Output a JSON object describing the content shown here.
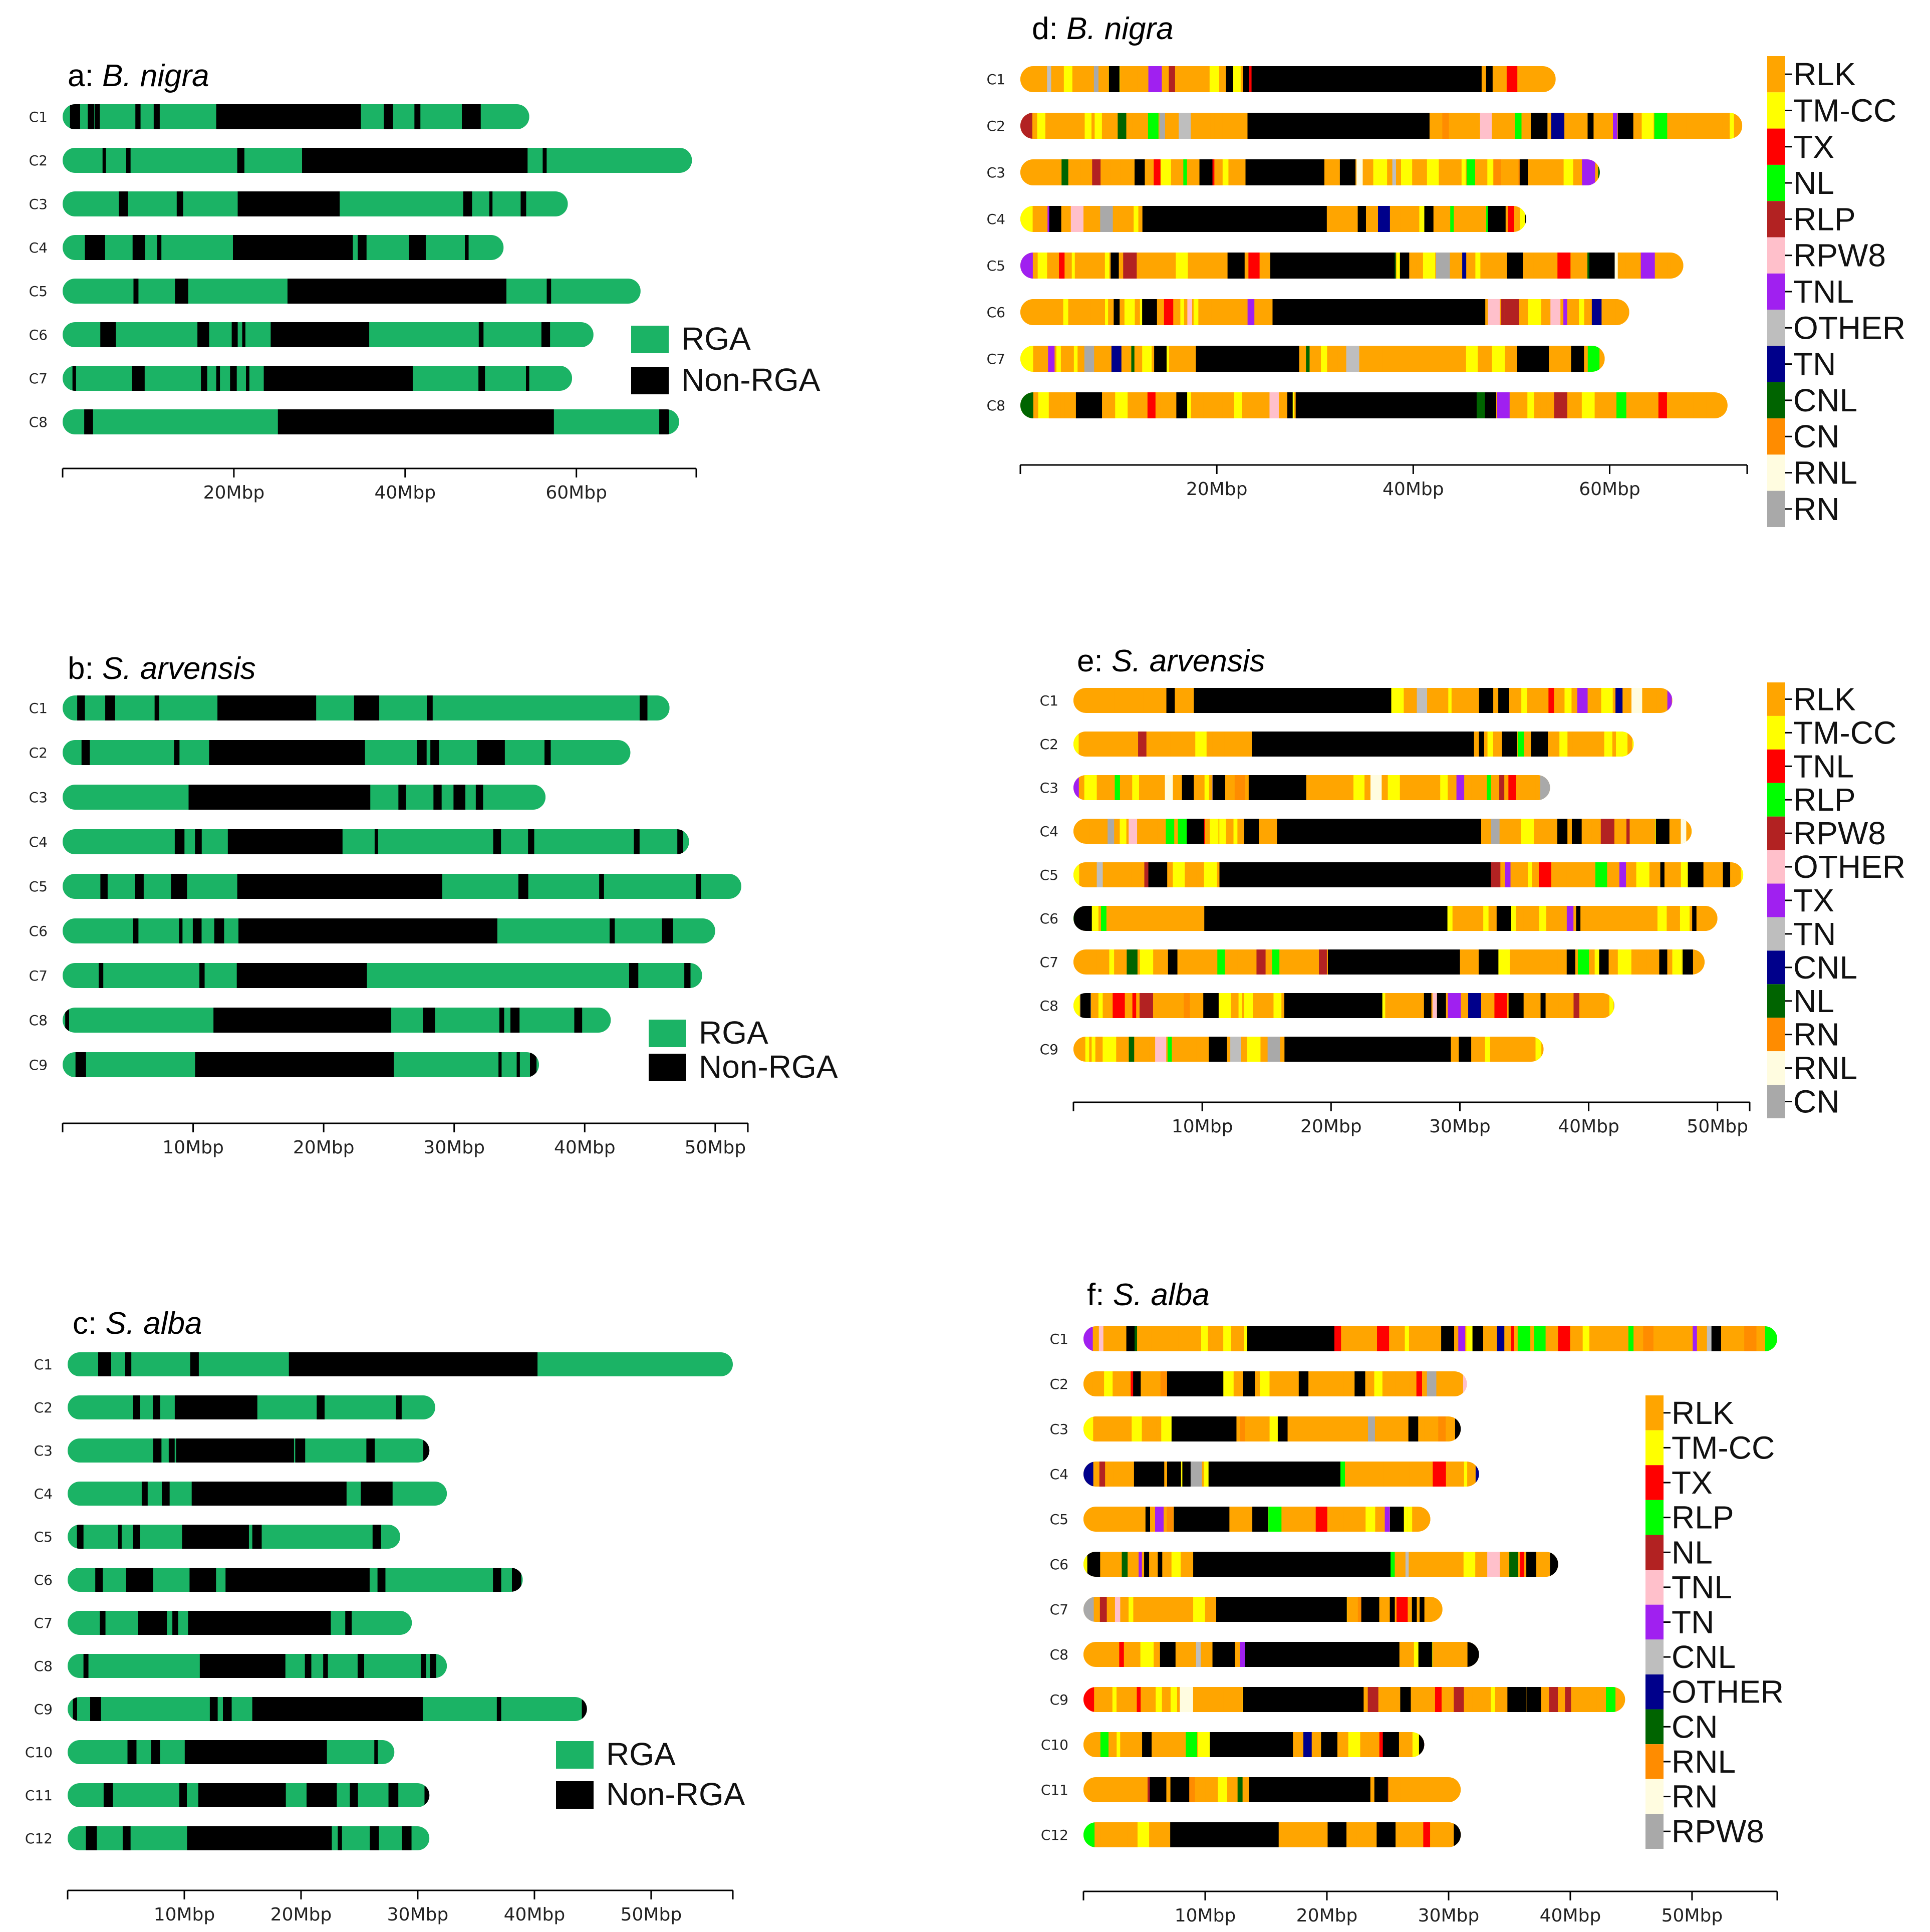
{
  "colors": {
    "rga": "#1bb365",
    "non_rga": "#000000"
  },
  "legends": {
    "rga_label": "RGA",
    "non_rga_label": "Non-RGA",
    "class_a": [
      "RLK",
      "TM-CC",
      "TX",
      "NL",
      "RLP",
      "RPW8",
      "TNL",
      "OTHER",
      "TN",
      "CNL",
      "CN",
      "RNL",
      "RN"
    ],
    "class_b": [
      "RLK",
      "TM-CC",
      "TNL",
      "RLP",
      "RPW8",
      "OTHER",
      "TX",
      "TN",
      "CNL",
      "NL",
      "RN",
      "RNL",
      "CN"
    ],
    "class_c": [
      "RLK",
      "TM-CC",
      "TX",
      "RLP",
      "NL",
      "TNL",
      "TN",
      "CNL",
      "OTHER",
      "CN",
      "RNL",
      "RN",
      "RPW8"
    ],
    "swatch_colors": [
      "#ffa500",
      "#ffff00",
      "#ff0000",
      "#00ff00",
      "#b22222",
      "#ffc0cb",
      "#a020f0",
      "#bebebe",
      "#00008b",
      "#006400",
      "#ff8c00",
      "#fffce0",
      "#a9a9a9"
    ]
  },
  "chart_data": [
    {
      "panel": "a",
      "type": "chromosome-map",
      "title_prefix": "a:",
      "title_species": "B. nigra",
      "ticks": [
        "20Mbp",
        "40Mbp",
        "60Mbp"
      ],
      "tick_values": [
        20,
        40,
        60
      ],
      "xlim": [
        0,
        74
      ],
      "chromosomes": [
        {
          "name": "C1",
          "length": 54.5
        },
        {
          "name": "C2",
          "length": 73.5
        },
        {
          "name": "C3",
          "length": 59
        },
        {
          "name": "C4",
          "length": 51.5
        },
        {
          "name": "C5",
          "length": 67.5
        },
        {
          "name": "C6",
          "length": 62
        },
        {
          "name": "C7",
          "length": 59.5
        },
        {
          "name": "C8",
          "length": 72
        }
      ]
    },
    {
      "panel": "b",
      "type": "chromosome-map",
      "title_prefix": "b:",
      "title_species": "S. arvensis",
      "ticks": [
        "10Mbp",
        "20Mbp",
        "30Mbp",
        "40Mbp",
        "50Mbp"
      ],
      "tick_values": [
        10,
        20,
        30,
        40,
        50
      ],
      "xlim": [
        0,
        52.5
      ],
      "chromosomes": [
        {
          "name": "C1",
          "length": 46.5
        },
        {
          "name": "C2",
          "length": 43.5
        },
        {
          "name": "C3",
          "length": 37
        },
        {
          "name": "C4",
          "length": 48
        },
        {
          "name": "C5",
          "length": 52
        },
        {
          "name": "C6",
          "length": 50
        },
        {
          "name": "C7",
          "length": 49
        },
        {
          "name": "C8",
          "length": 42
        },
        {
          "name": "C9",
          "length": 36.5
        }
      ]
    },
    {
      "panel": "c",
      "type": "chromosome-map",
      "title_prefix": "c:",
      "title_species": "S. alba",
      "ticks": [
        "10Mbp",
        "20Mbp",
        "30Mbp",
        "40Mbp",
        "50Mbp"
      ],
      "tick_values": [
        10,
        20,
        30,
        40,
        50
      ],
      "xlim": [
        0,
        57
      ],
      "chromosomes": [
        {
          "name": "C1",
          "length": 57
        },
        {
          "name": "C2",
          "length": 31.5
        },
        {
          "name": "C3",
          "length": 31
        },
        {
          "name": "C4",
          "length": 32.5
        },
        {
          "name": "C5",
          "length": 28.5
        },
        {
          "name": "C6",
          "length": 39
        },
        {
          "name": "C7",
          "length": 29.5
        },
        {
          "name": "C8",
          "length": 32.5
        },
        {
          "name": "C9",
          "length": 44.5
        },
        {
          "name": "C10",
          "length": 28
        },
        {
          "name": "C11",
          "length": 31
        },
        {
          "name": "C12",
          "length": 31
        }
      ]
    },
    {
      "panel": "d",
      "type": "chromosome-map",
      "title_prefix": "d:",
      "title_species": "B. nigra",
      "ticks": [
        "20Mbp",
        "40Mbp",
        "60Mbp"
      ],
      "tick_values": [
        20,
        40,
        60
      ],
      "xlim": [
        0,
        74
      ],
      "chromosomes": [
        {
          "name": "C1",
          "length": 54.5
        },
        {
          "name": "C2",
          "length": 73.5
        },
        {
          "name": "C3",
          "length": 59
        },
        {
          "name": "C4",
          "length": 51.5
        },
        {
          "name": "C5",
          "length": 67.5
        },
        {
          "name": "C6",
          "length": 62
        },
        {
          "name": "C7",
          "length": 59.5
        },
        {
          "name": "C8",
          "length": 72
        }
      ]
    },
    {
      "panel": "e",
      "type": "chromosome-map",
      "title_prefix": "e:",
      "title_species": "S. arvensis",
      "ticks": [
        "10Mbp",
        "20Mbp",
        "30Mbp",
        "40Mbp",
        "50Mbp"
      ],
      "tick_values": [
        10,
        20,
        30,
        40,
        50
      ],
      "xlim": [
        0,
        52.5
      ],
      "chromosomes": [
        {
          "name": "C1",
          "length": 46.5
        },
        {
          "name": "C2",
          "length": 43.5
        },
        {
          "name": "C3",
          "length": 37
        },
        {
          "name": "C4",
          "length": 48
        },
        {
          "name": "C5",
          "length": 52
        },
        {
          "name": "C6",
          "length": 50
        },
        {
          "name": "C7",
          "length": 49
        },
        {
          "name": "C8",
          "length": 42
        },
        {
          "name": "C9",
          "length": 36.5
        }
      ]
    },
    {
      "panel": "f",
      "type": "chromosome-map",
      "title_prefix": "f:",
      "title_species": "S. alba",
      "ticks": [
        "10Mbp",
        "20Mbp",
        "30Mbp",
        "40Mbp",
        "50Mbp"
      ],
      "tick_values": [
        10,
        20,
        30,
        40,
        50
      ],
      "xlim": [
        0,
        57
      ],
      "chromosomes": [
        {
          "name": "C1",
          "length": 57
        },
        {
          "name": "C2",
          "length": 31.5
        },
        {
          "name": "C3",
          "length": 31
        },
        {
          "name": "C4",
          "length": 32.5
        },
        {
          "name": "C5",
          "length": 28.5
        },
        {
          "name": "C6",
          "length": 39
        },
        {
          "name": "C7",
          "length": 29.5
        },
        {
          "name": "C8",
          "length": 32.5
        },
        {
          "name": "C9",
          "length": 44.5
        },
        {
          "name": "C10",
          "length": 28
        },
        {
          "name": "C11",
          "length": 31
        },
        {
          "name": "C12",
          "length": 31
        }
      ]
    }
  ]
}
